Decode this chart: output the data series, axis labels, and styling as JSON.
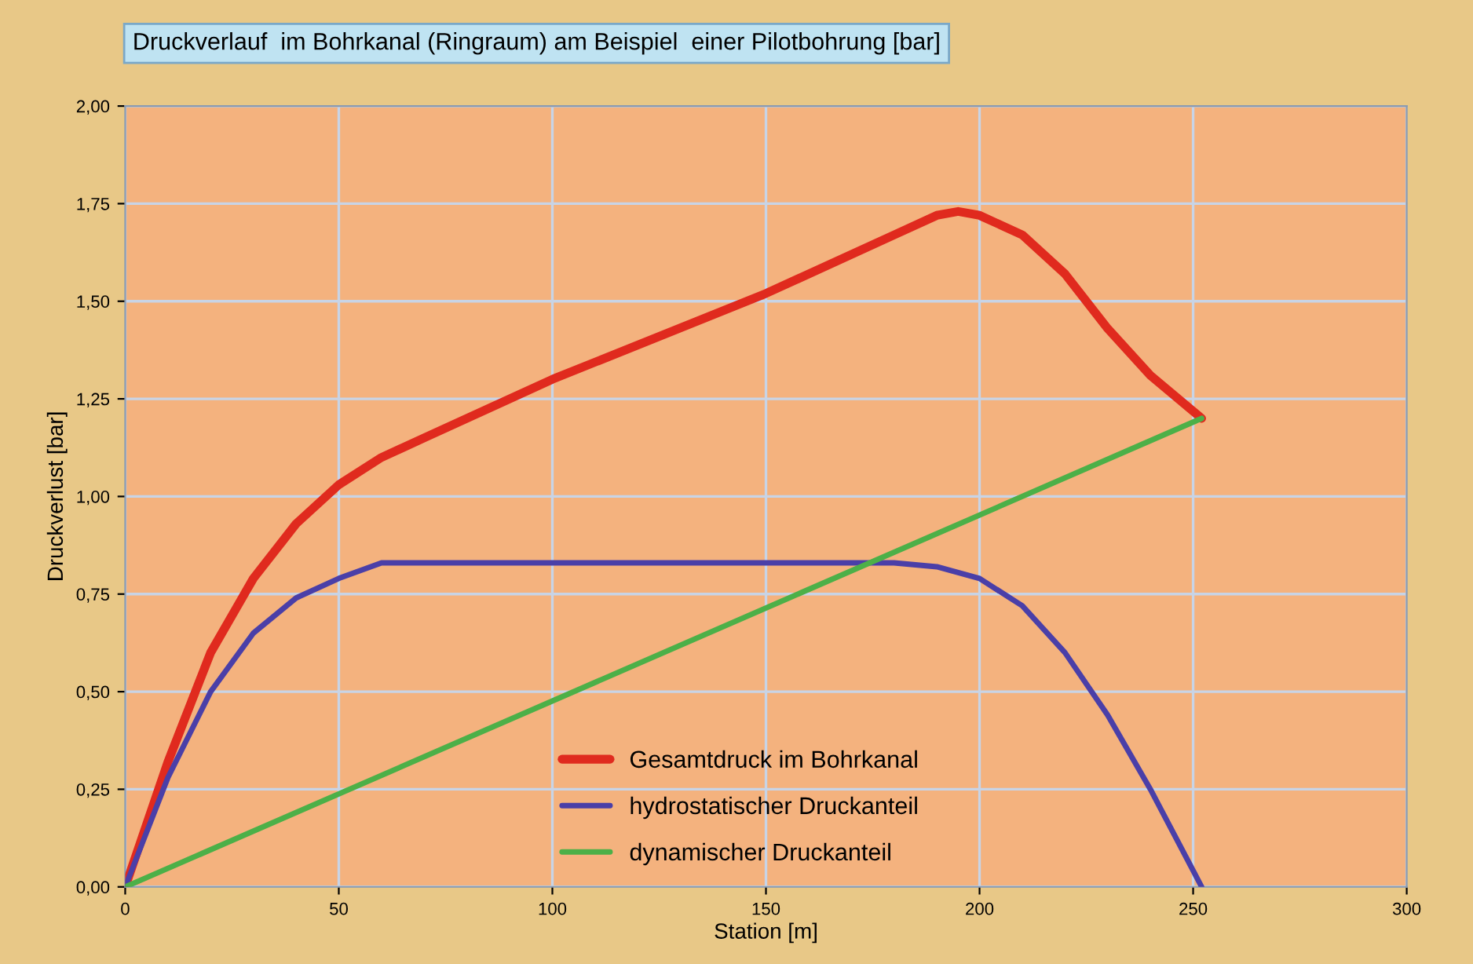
{
  "chart_data": {
    "type": "line",
    "title": "Druckverlauf  im Bohrkanal (Ringraum) am Beispiel  einer Pilotbohrung [bar]",
    "xlabel": "Station [m]",
    "ylabel": "Druckverlust [bar]",
    "xlim": [
      0,
      300
    ],
    "xticks": [
      0,
      50,
      100,
      150,
      200,
      250,
      300
    ],
    "ylim": [
      0,
      2
    ],
    "yticks": [
      {
        "value": 0,
        "label": "0,00"
      },
      {
        "value": 0.25,
        "label": "0,25"
      },
      {
        "value": 0.5,
        "label": "0,50"
      },
      {
        "value": 0.75,
        "label": "0,75"
      },
      {
        "value": 1,
        "label": "1,00"
      },
      {
        "value": 1.25,
        "label": "1,25"
      },
      {
        "value": 1.5,
        "label": "1,50"
      },
      {
        "value": 1.75,
        "label": "1,75"
      },
      {
        "value": 2,
        "label": "2,00"
      }
    ],
    "grid": true,
    "legend": "bottom",
    "marker": "none",
    "line_style": "solid",
    "series": [
      {
        "name": "Gesamtdruck im Bohrkanal",
        "color": "#e02a1e",
        "x": [
          0,
          10,
          20,
          30,
          40,
          50,
          60,
          70,
          100,
          150,
          180,
          190,
          195,
          200,
          210,
          220,
          230,
          240,
          252
        ],
        "values": [
          0,
          0.32,
          0.6,
          0.79,
          0.93,
          1.03,
          1.1,
          1.15,
          1.3,
          1.52,
          1.67,
          1.72,
          1.73,
          1.72,
          1.67,
          1.57,
          1.43,
          1.31,
          1.2
        ]
      },
      {
        "name": "hydrostatischer Druckanteil",
        "color": "#4a3fa8",
        "x": [
          0,
          10,
          20,
          30,
          40,
          50,
          60,
          100,
          150,
          180,
          190,
          200,
          210,
          220,
          230,
          240,
          252
        ],
        "values": [
          0,
          0.28,
          0.5,
          0.65,
          0.74,
          0.79,
          0.83,
          0.83,
          0.83,
          0.83,
          0.82,
          0.79,
          0.72,
          0.6,
          0.44,
          0.25,
          0
        ]
      },
      {
        "name": "dynamischer Druckanteil",
        "color": "#4cb048",
        "x": [
          0,
          252
        ],
        "values": [
          0,
          1.2
        ]
      }
    ]
  }
}
